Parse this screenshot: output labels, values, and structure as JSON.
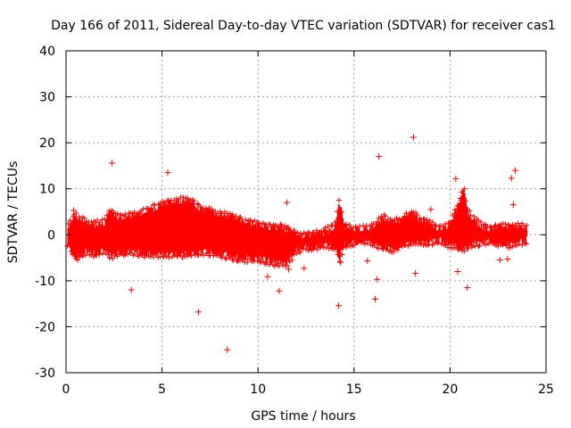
{
  "chart_data": {
    "type": "scatter",
    "title": "Day 166 of 2011, Sidereal Day-to-day VTEC variation (SDTVAR) for receiver cas1",
    "xlabel": "GPS time / hours",
    "ylabel": "SDTVAR / TECUs",
    "xlim": [
      0,
      25
    ],
    "ylim": [
      -30,
      40
    ],
    "xticks": [
      0,
      5,
      10,
      15,
      20,
      25
    ],
    "yticks": [
      -30,
      -20,
      -10,
      0,
      10,
      20,
      30,
      40
    ],
    "xtick_labels": [
      "0",
      "5",
      "10",
      "15",
      "20",
      "25"
    ],
    "ytick_labels": [
      "-30",
      "-20",
      "-10",
      "0",
      "10",
      "20",
      "30",
      "40"
    ],
    "grid": true,
    "marker": "+",
    "color": "#ff0000",
    "series": [
      {
        "name": "cas1",
        "x": [
          0.4,
          2.4,
          3.4,
          5.3,
          6.9,
          8.4,
          10.5,
          11.1,
          11.5,
          11.6,
          12.4,
          14.2,
          14.3,
          15.7,
          16.1,
          16.2,
          16.3,
          18.1,
          18.2,
          19.0,
          20.3,
          20.4,
          20.6,
          20.9,
          22.6,
          23.0,
          23.2,
          23.3,
          23.4
        ],
        "y": [
          5.3,
          15.6,
          -12.0,
          13.5,
          -16.8,
          -25.0,
          -9.1,
          -12.2,
          7.0,
          -7.5,
          -7.3,
          -15.4,
          -6.0,
          -5.7,
          -14.0,
          -9.7,
          17.0,
          21.2,
          -8.4,
          5.5,
          12.2,
          -8.0,
          7.5,
          -11.5,
          -5.5,
          -5.3,
          12.3,
          6.5,
          14.0
        ]
      }
    ],
    "envelope": {
      "note": "dense band of + markers; per-hour upper and lower extents",
      "hours": [
        0.1,
        0.5,
        1.0,
        1.5,
        2.0,
        2.3,
        2.5,
        3.0,
        3.5,
        4.0,
        4.5,
        5.0,
        5.5,
        6.0,
        6.5,
        7.0,
        7.5,
        8.0,
        8.5,
        9.0,
        9.5,
        10.0,
        10.5,
        11.0,
        11.5,
        12.0,
        12.5,
        13.0,
        13.5,
        14.0,
        14.25,
        14.5,
        15.0,
        15.5,
        16.0,
        16.5,
        17.0,
        17.5,
        18.0,
        18.5,
        19.0,
        19.5,
        20.0,
        20.5,
        20.7,
        21.0,
        21.5,
        22.0,
        22.5,
        23.0,
        23.5,
        24.0
      ],
      "upper": [
        1.5,
        4.0,
        2.5,
        2.0,
        2.5,
        5.0,
        4.0,
        3.5,
        4.0,
        4.5,
        5.5,
        6.5,
        7.0,
        7.2,
        7.0,
        5.5,
        5.0,
        4.0,
        4.0,
        3.0,
        2.5,
        2.0,
        1.5,
        1.5,
        1.0,
        0.0,
        -0.5,
        0.0,
        0.5,
        1.5,
        7.0,
        1.5,
        1.0,
        1.0,
        1.5,
        3.5,
        2.5,
        3.0,
        4.5,
        3.0,
        2.0,
        1.0,
        2.0,
        7.0,
        10.0,
        4.0,
        2.0,
        1.0,
        1.5,
        1.5,
        1.5,
        1.5
      ],
      "lower": [
        -2.0,
        -5.0,
        -3.5,
        -4.0,
        -3.0,
        -4.5,
        -4.0,
        -3.5,
        -3.5,
        -4.0,
        -4.0,
        -4.0,
        -4.0,
        -4.0,
        -4.0,
        -3.5,
        -3.5,
        -4.0,
        -4.5,
        -5.0,
        -5.0,
        -5.0,
        -5.5,
        -6.0,
        -6.0,
        -3.0,
        -2.5,
        -2.5,
        -2.0,
        -2.5,
        -5.0,
        -2.0,
        -1.5,
        -1.0,
        -1.5,
        -2.5,
        -3.0,
        -2.0,
        -1.5,
        -1.5,
        -1.5,
        -1.0,
        -2.0,
        -2.5,
        -3.0,
        -2.0,
        -1.5,
        -1.0,
        -1.5,
        -2.0,
        -1.5,
        -1.0
      ]
    }
  }
}
